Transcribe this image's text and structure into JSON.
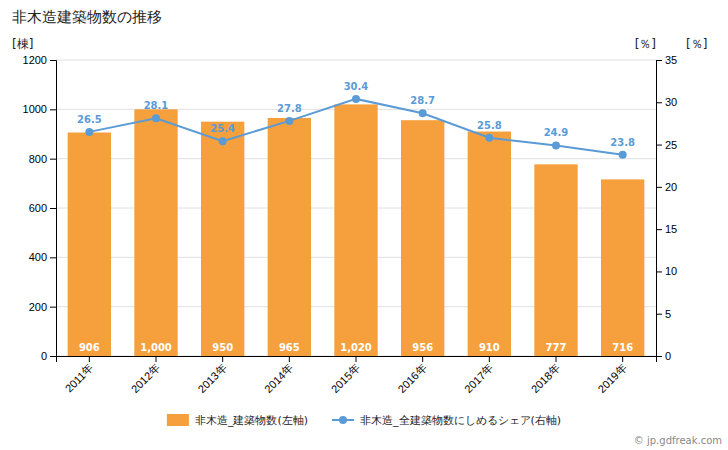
{
  "chart_data": {
    "type": "bar",
    "title": "非木造建築物数の推移",
    "y_label": "[棟]",
    "y2_label": "[％]",
    "annotations": [
      "[％]",
      "© jp.gdfreak.com"
    ],
    "categories": [
      "2011年",
      "2012年",
      "2013年",
      "2014年",
      "2015年",
      "2016年",
      "2017年",
      "2018年",
      "2019年"
    ],
    "series": [
      {
        "name": "非木造_建築物数(左軸)",
        "type": "bar",
        "color": "#F5A03C",
        "values": [
          906,
          1000,
          950,
          965,
          1020,
          956,
          910,
          777,
          716
        ],
        "value_labels": [
          "906",
          "1,000",
          "950",
          "965",
          "1,020",
          "956",
          "910",
          "777",
          "716"
        ]
      },
      {
        "name": "非木造_全建築物数にしめるシェア(右軸)",
        "type": "line",
        "color": "#5B9BD5",
        "marker": "circle",
        "axis": "y2",
        "values": [
          26.5,
          28.1,
          25.4,
          27.8,
          30.4,
          28.7,
          25.8,
          24.9,
          23.8
        ]
      }
    ],
    "ylim": [
      0,
      1200
    ],
    "yticks": [
      0,
      200,
      400,
      600,
      800,
      1000,
      1200
    ],
    "y2lim": [
      0.0,
      35.0
    ],
    "y2ticks": [
      0.0,
      5.0,
      10.0,
      15.0,
      20.0,
      25.0,
      30.0,
      35.0
    ],
    "grid": true,
    "data_labels": true,
    "legend": "bottom"
  }
}
